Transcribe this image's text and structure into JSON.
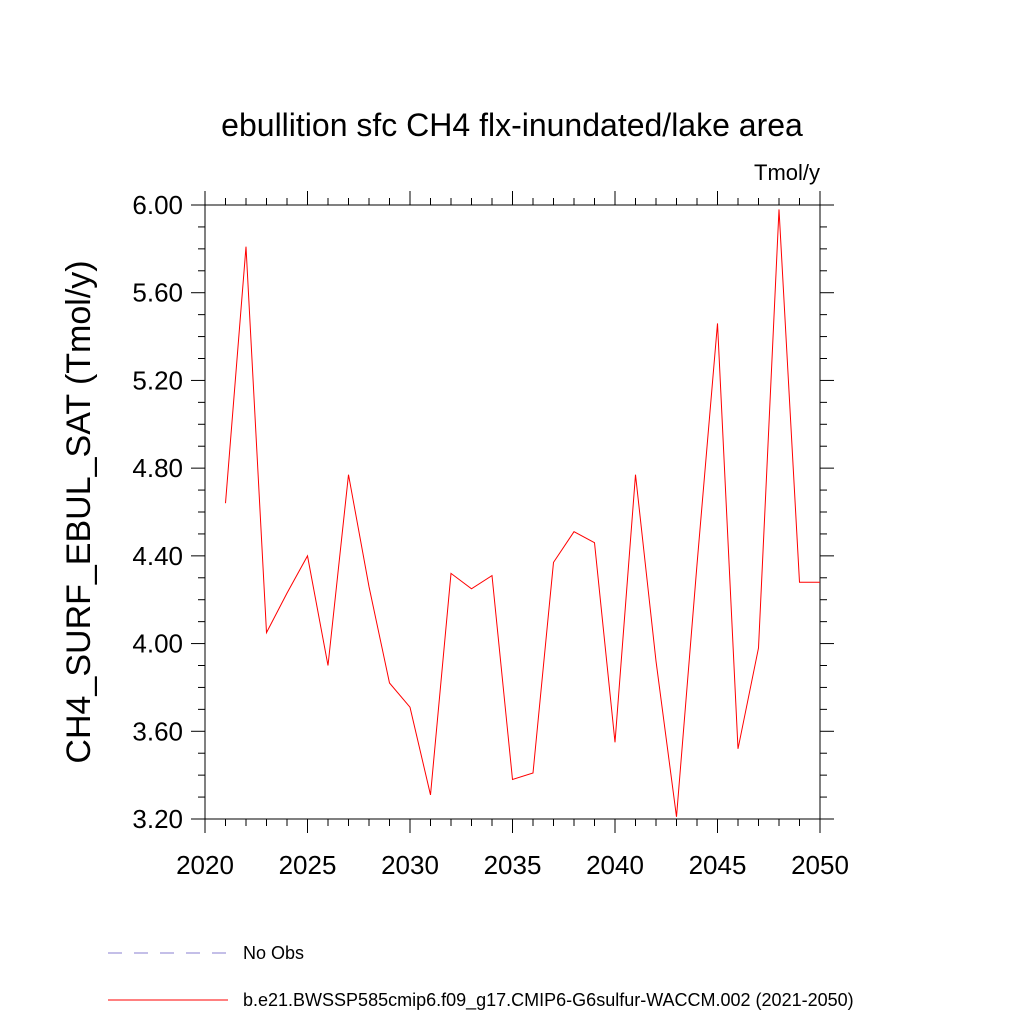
{
  "chart_data": {
    "type": "line",
    "title": "ebullition sfc CH4 flx-inundated/lake area",
    "units_label": "Tmol/y",
    "ylabel": "CH4_SURF_EBUL_SAT  (Tmol/y)",
    "xlabel": "",
    "xlim": [
      2020,
      2050
    ],
    "ylim": [
      3.2,
      6.0
    ],
    "x_ticks": [
      2020,
      2025,
      2030,
      2035,
      2040,
      2045,
      2050
    ],
    "x_tick_labels": [
      "2020",
      "2025",
      "2030",
      "2035",
      "2040",
      "2045",
      "2050"
    ],
    "y_ticks": [
      3.2,
      3.6,
      4.0,
      4.4,
      4.8,
      5.2,
      5.6,
      6.0
    ],
    "y_tick_labels": [
      "3.20",
      "3.60",
      "4.00",
      "4.40",
      "4.80",
      "5.20",
      "5.60",
      "6.00"
    ],
    "series": [
      {
        "name": "b.e21.BWSSP585cmip6.f09_g17.CMIP6-G6sulfur-WACCM.002 (2021-2050)",
        "color": "#ff0000",
        "style": "solid",
        "x": [
          2021,
          2022,
          2023,
          2024,
          2025,
          2026,
          2027,
          2028,
          2029,
          2030,
          2031,
          2032,
          2033,
          2034,
          2035,
          2036,
          2037,
          2038,
          2039,
          2040,
          2041,
          2042,
          2043,
          2044,
          2045,
          2046,
          2047,
          2048,
          2049,
          2050
        ],
        "values": [
          4.64,
          5.81,
          4.05,
          4.23,
          4.4,
          3.9,
          4.77,
          4.26,
          3.82,
          3.71,
          3.31,
          4.32,
          4.25,
          4.31,
          3.38,
          3.41,
          4.37,
          4.51,
          4.46,
          3.55,
          4.77,
          3.92,
          3.21,
          4.36,
          5.46,
          3.52,
          3.98,
          5.98,
          4.28,
          4.28
        ]
      }
    ],
    "legend": {
      "placement": "bottom",
      "entries": [
        {
          "label": "No Obs",
          "color": "#8a7fd1",
          "style": "dashed"
        },
        {
          "label": "b.e21.BWSSP585cmip6.f09_g17.CMIP6-G6sulfur-WACCM.002 (2021-2050)",
          "color": "#ff0000",
          "style": "solid"
        }
      ]
    },
    "grid": false
  }
}
